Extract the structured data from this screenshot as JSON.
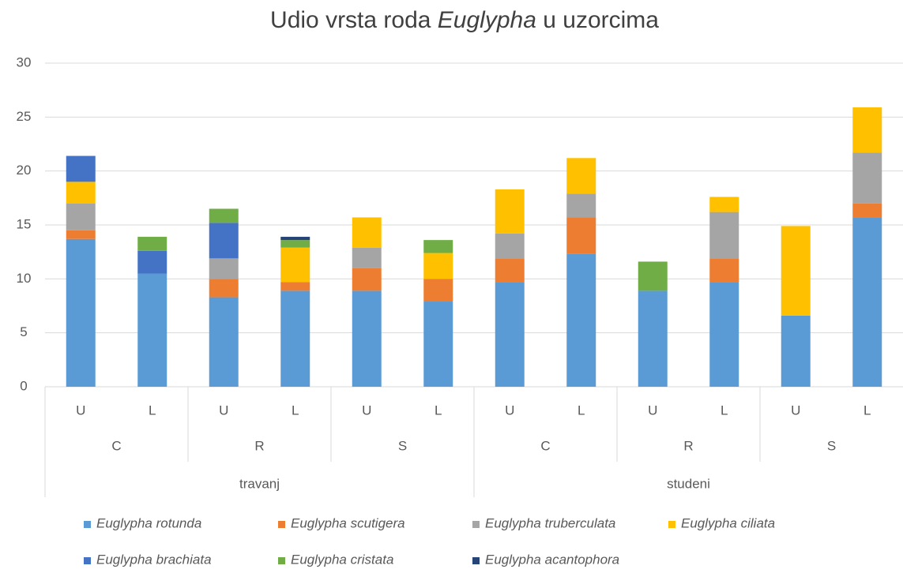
{
  "chart_data": {
    "type": "stacked_bar",
    "title": [
      "Udio vrsta roda ",
      "Euglypha",
      " u uzorcima"
    ],
    "groups": [
      {
        "name": "travanj",
        "subgroups": [
          {
            "name": "C",
            "categories": [
              "U",
              "L"
            ]
          },
          {
            "name": "R",
            "categories": [
              "U",
              "L"
            ]
          },
          {
            "name": "S",
            "categories": [
              "U",
              "L"
            ]
          }
        ]
      },
      {
        "name": "studeni",
        "subgroups": [
          {
            "name": "C",
            "categories": [
              "U",
              "L"
            ]
          },
          {
            "name": "R",
            "categories": [
              "U",
              "L"
            ]
          },
          {
            "name": "S",
            "categories": [
              "U",
              "L"
            ]
          }
        ]
      }
    ],
    "series": [
      {
        "name": "Euglypha rotunda",
        "color": "#5b9bd5",
        "values": [
          13.7,
          10.5,
          8.3,
          8.9,
          8.9,
          7.9,
          9.7,
          12.3,
          8.9,
          9.7,
          6.6,
          15.7
        ]
      },
      {
        "name": "Euglypha scutigera",
        "color": "#ed7d31",
        "values": [
          0.8,
          0,
          1.7,
          0.8,
          2.1,
          2.1,
          2.2,
          3.4,
          0,
          2.2,
          0,
          1.3
        ]
      },
      {
        "name": "Euglypha truberculata",
        "color": "#a5a5a5",
        "values": [
          2.5,
          0,
          1.9,
          0,
          1.9,
          0,
          2.3,
          2.2,
          0,
          4.3,
          0,
          4.7
        ]
      },
      {
        "name": "Euglypha ciliata",
        "color": "#ffc000",
        "values": [
          2.0,
          0,
          0,
          3.2,
          2.8,
          2.4,
          4.1,
          3.3,
          0,
          1.4,
          8.3,
          4.2
        ]
      },
      {
        "name": "Euglypha brachiata",
        "color": "#4472c4",
        "values": [
          2.4,
          2.1,
          3.3,
          0,
          0,
          0,
          0,
          0,
          0,
          0,
          0,
          0
        ]
      },
      {
        "name": "Euglypha cristata",
        "color": "#70ad47",
        "values": [
          0,
          1.3,
          1.3,
          0.7,
          0,
          1.2,
          0,
          0,
          2.7,
          0,
          0,
          0
        ]
      },
      {
        "name": "Euglypha acantophora",
        "color": "#264478",
        "values": [
          0,
          0,
          0,
          0.3,
          0,
          0,
          0,
          0,
          0,
          0,
          0,
          0
        ]
      }
    ],
    "ylim": [
      0,
      30
    ],
    "yticks": [
      0,
      5,
      10,
      15,
      20,
      25,
      30
    ],
    "grid": true,
    "legend": "bottom"
  }
}
